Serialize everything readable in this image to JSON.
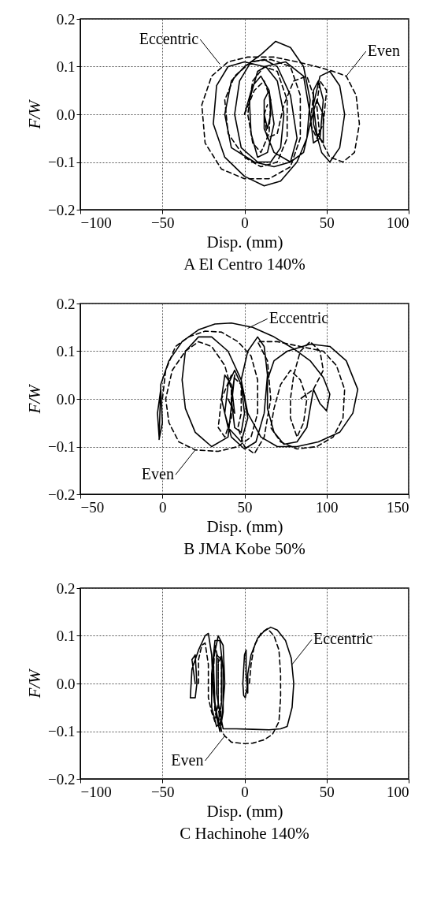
{
  "chart_data": [
    {
      "type": "line",
      "title": "A El Centro 140%",
      "xlabel": "Disp. (mm)",
      "ylabel": "F/W",
      "xlim": [
        -100,
        100
      ],
      "ylim": [
        -0.2,
        0.2
      ],
      "xticks": [
        -100,
        -50,
        0,
        50,
        100
      ],
      "yticks": [
        {
          "value": -0.2,
          "label": "−0.2"
        },
        {
          "value": -0.1,
          "label": "−0.1"
        },
        {
          "value": 0,
          "label": "0.0"
        },
        {
          "value": 0.1,
          "label": "0.1"
        },
        {
          "value": 0.2,
          "label": "0.2"
        }
      ],
      "grid": true,
      "annotations": [
        {
          "text": "Eccentric",
          "x": -15,
          "y": 0.105
        },
        {
          "text": "Even",
          "x": 62,
          "y": 0.08
        }
      ],
      "series": [
        {
          "color": "#000000",
          "line_style": "solid",
          "x": [
            0,
            5,
            10,
            15,
            18,
            14,
            8,
            4,
            3,
            8,
            13,
            20,
            24,
            22,
            16,
            8,
            -2,
            -6,
            -3,
            4,
            12,
            20,
            28,
            32,
            28,
            18,
            6,
            -8,
            -12,
            -8,
            0,
            10,
            19,
            28,
            36,
            40,
            38,
            32,
            22,
            12,
            0,
            -12,
            -19,
            -17,
            -10,
            0,
            12,
            25,
            36,
            40,
            42,
            46,
            48,
            45,
            42,
            42,
            47,
            52,
            58,
            61,
            58,
            52,
            46,
            42,
            44,
            48,
            48,
            44,
            40,
            36,
            28,
            18,
            12,
            12,
            15,
            16,
            14,
            12
          ],
          "values": [
            0,
            0.06,
            0.08,
            0.05,
            -0.02,
            -0.08,
            -0.09,
            -0.04,
            0.03,
            0.09,
            0.1,
            0.07,
            0,
            -0.07,
            -0.1,
            -0.1,
            -0.07,
            0,
            0.07,
            0.11,
            0.115,
            0.1,
            0.04,
            -0.05,
            -0.1,
            -0.11,
            -0.1,
            -0.07,
            0,
            0.07,
            0.1,
            0.125,
            0.153,
            0.14,
            0.1,
            0.03,
            -0.05,
            -0.1,
            -0.14,
            -0.15,
            -0.13,
            -0.09,
            -0.02,
            0.06,
            0.1,
            0.11,
            0.1,
            0.11,
            0.08,
            0,
            -0.06,
            -0.05,
            0.03,
            0.07,
            0.05,
            -0.02,
            -0.08,
            -0.1,
            -0.07,
            0,
            0.06,
            0.09,
            0.08,
            0.02,
            -0.04,
            -0.06,
            0,
            0.03,
            -0.02,
            -0.08,
            -0.1,
            -0.08,
            -0.03,
            0.03,
            0.05,
            0,
            -0.03,
            0
          ]
        },
        {
          "color": "#000000",
          "line_style": "dashed",
          "x": [
            0,
            6,
            12,
            16,
            15,
            10,
            5,
            2,
            5,
            12,
            20,
            26,
            26,
            20,
            10,
            0,
            -10,
            -12,
            -6,
            4,
            16,
            28,
            34,
            34,
            28,
            15,
            0,
            -14,
            -24,
            -26,
            -20,
            -10,
            2,
            18,
            32,
            44,
            54,
            62,
            68,
            70,
            67,
            60,
            52,
            46,
            44,
            46,
            50,
            48,
            44,
            40,
            42,
            38,
            30,
            24,
            20,
            14,
            12,
            14
          ],
          "values": [
            0,
            0.05,
            0.07,
            0.03,
            -0.04,
            -0.08,
            -0.06,
            0,
            0.07,
            0.1,
            0.09,
            0.03,
            -0.05,
            -0.1,
            -0.11,
            -0.09,
            -0.04,
            0.03,
            0.08,
            0.11,
            0.115,
            0.1,
            0.04,
            -0.05,
            -0.11,
            -0.135,
            -0.135,
            -0.115,
            -0.06,
            0.02,
            0.08,
            0.11,
            0.12,
            0.12,
            0.11,
            0.1,
            0.09,
            0.08,
            0.04,
            -0.02,
            -0.08,
            -0.1,
            -0.09,
            -0.05,
            0.02,
            0.07,
            0.05,
            -0.02,
            -0.05,
            -0.02,
            0.04,
            0.08,
            0.07,
            0.02,
            -0.04,
            -0.05,
            0,
            0.02
          ]
        }
      ]
    },
    {
      "type": "line",
      "title": "B JMA Kobe 50%",
      "xlabel": "Disp. (mm)",
      "ylabel": "F/W",
      "xlim": [
        -50,
        150
      ],
      "ylim": [
        -0.2,
        0.2
      ],
      "xticks": [
        -50,
        0,
        50,
        100,
        150
      ],
      "yticks": [
        {
          "value": -0.2,
          "label": "−0.2"
        },
        {
          "value": -0.1,
          "label": "−0.1"
        },
        {
          "value": 0,
          "label": "0.0"
        },
        {
          "value": 0.1,
          "label": "0.1"
        },
        {
          "value": 0.2,
          "label": "0.2"
        }
      ],
      "grid": true,
      "annotations": [
        {
          "text": "Eccentric",
          "x": 52,
          "y": 0.148
        },
        {
          "text": "Even",
          "x": 20,
          "y": -0.107
        }
      ],
      "series": [
        {
          "color": "#000000",
          "line_style": "solid",
          "x": [
            -2,
            -3,
            -1,
            0,
            -2,
            -1,
            4,
            12,
            22,
            32,
            42,
            55,
            68,
            80,
            90,
            98,
            102,
            100,
            96,
            92,
            90,
            88,
            82,
            74,
            68,
            64,
            64,
            68,
            76,
            90,
            102,
            112,
            119,
            116,
            108,
            95,
            82,
            70,
            60,
            52,
            48,
            52,
            58,
            62,
            64,
            62,
            57,
            50,
            42,
            38,
            40,
            44,
            48,
            50,
            48,
            44,
            42,
            44,
            40,
            30,
            20,
            14,
            12,
            14,
            22,
            30,
            40,
            48,
            52,
            48,
            40,
            36,
            38,
            42,
            44,
            40
          ],
          "values": [
            -0.08,
            -0.03,
            0.02,
            -0.05,
            -0.085,
            0.03,
            0.08,
            0.12,
            0.145,
            0.157,
            0.159,
            0.15,
            0.13,
            0.105,
            0.08,
            0.045,
            0.01,
            -0.025,
            -0.01,
            0.02,
            -0.02,
            -0.06,
            -0.09,
            -0.095,
            -0.07,
            -0.02,
            0.04,
            0.08,
            0.1,
            0.115,
            0.11,
            0.08,
            0.02,
            -0.03,
            -0.07,
            -0.09,
            -0.1,
            -0.1,
            -0.08,
            -0.03,
            0.04,
            0.1,
            0.13,
            0.11,
            0.05,
            -0.03,
            -0.09,
            -0.105,
            -0.08,
            -0.03,
            0.03,
            0.06,
            0.03,
            -0.03,
            -0.07,
            -0.06,
            0,
            0.05,
            -0.08,
            -0.1,
            -0.07,
            -0.02,
            0.04,
            0.1,
            0.13,
            0.13,
            0.1,
            0.04,
            -0.04,
            -0.09,
            -0.06,
            0,
            0.05,
            0.03,
            -0.03,
            0
          ]
        },
        {
          "color": "#000000",
          "line_style": "dashed",
          "x": [
            0,
            2,
            8,
            16,
            26,
            36,
            46,
            54,
            58,
            58,
            54,
            46,
            34,
            20,
            10,
            4,
            2,
            6,
            14,
            22,
            30,
            38,
            42,
            42,
            38,
            34,
            36,
            42,
            48,
            48,
            46,
            50,
            56,
            62,
            66,
            64,
            58,
            70,
            84,
            98,
            106,
            111,
            110,
            104,
            94,
            82,
            72,
            66,
            68,
            72,
            78,
            84,
            88,
            86,
            82,
            78,
            78,
            80,
            84,
            90,
            96,
            98,
            92,
            84
          ],
          "values": [
            0,
            0.06,
            0.11,
            0.13,
            0.142,
            0.14,
            0.12,
            0.09,
            0.04,
            -0.03,
            -0.08,
            -0.1,
            -0.11,
            -0.107,
            -0.09,
            -0.05,
            0,
            0.06,
            0.1,
            0.12,
            0.11,
            0.07,
            0.02,
            -0.04,
            -0.08,
            -0.06,
            0,
            0.05,
            0.03,
            -0.03,
            -0.06,
            -0.1,
            -0.115,
            -0.08,
            0,
            0.08,
            0.12,
            0.12,
            0.11,
            0.1,
            0.07,
            0.02,
            -0.04,
            -0.08,
            -0.1,
            -0.105,
            -0.09,
            -0.06,
            -0.02,
            0.03,
            0.06,
            0.04,
            0,
            -0.05,
            -0.08,
            -0.04,
            0,
            0.05,
            0.1,
            0.12,
            0.1,
            0.06,
            0.02,
            0
          ]
        }
      ]
    },
    {
      "type": "line",
      "title": "C Hachinohe 140%",
      "xlabel": "Disp. (mm)",
      "ylabel": "F/W",
      "xlim": [
        -100,
        100
      ],
      "ylim": [
        -0.2,
        0.2
      ],
      "xticks": [
        -100,
        -50,
        0,
        50,
        100
      ],
      "yticks": [
        {
          "value": -0.2,
          "label": "−0.2"
        },
        {
          "value": -0.1,
          "label": "−0.1"
        },
        {
          "value": 0,
          "label": "0.0"
        },
        {
          "value": 0.1,
          "label": "0.1"
        },
        {
          "value": 0.2,
          "label": "0.2"
        }
      ],
      "grid": true,
      "annotations": [
        {
          "text": "Eccentric",
          "x": 29,
          "y": 0.04
        },
        {
          "text": "Even",
          "x": -12,
          "y": -0.11
        }
      ],
      "series": [
        {
          "color": "#000000",
          "line_style": "solid",
          "x": [
            -30,
            -32,
            -30,
            -29,
            -30,
            -33,
            -32,
            -28,
            -24,
            -22,
            -20,
            -19,
            -17,
            -15,
            -13,
            -13,
            -15,
            -18,
            -20,
            -20,
            -17,
            -14,
            -12,
            -13,
            -16,
            -19,
            -18,
            -16,
            -14,
            -14,
            -17,
            -17,
            -15,
            -13,
            -5,
            5,
            15,
            22,
            26,
            29,
            30,
            28.5,
            25,
            20,
            16,
            12,
            8,
            4,
            2,
            2,
            1,
            1,
            0,
            -1,
            -0.5,
            0.5,
            2
          ],
          "values": [
            0,
            0.05,
            0.06,
            0,
            -0.03,
            -0.03,
            0.03,
            0.07,
            0.1,
            0.105,
            0.06,
            -0.02,
            -0.07,
            -0.1,
            -0.06,
            0.03,
            0.09,
            0.09,
            0.02,
            -0.05,
            -0.09,
            -0.08,
            0,
            0.08,
            0.1,
            0.05,
            -0.04,
            -0.08,
            -0.04,
            0.05,
            0.06,
            -0.02,
            -0.06,
            -0.095,
            -0.095,
            -0.096,
            -0.097,
            -0.095,
            -0.09,
            -0.05,
            0,
            0.053,
            0.09,
            0.112,
            0.118,
            0.11,
            0.095,
            0.06,
            0.02,
            -0.02,
            0.02,
            0.07,
            0.06,
            0,
            -0.025,
            -0.03,
            0
          ]
        },
        {
          "color": "#000000",
          "line_style": "dashed",
          "x": [
            -28,
            -28,
            -26,
            -24,
            -22,
            -22,
            -20,
            -18,
            -16,
            -16,
            -18,
            -19,
            -18,
            -15,
            -14,
            -14,
            -16,
            -16,
            -14,
            -12,
            -8,
            0,
            5,
            12,
            17,
            21,
            22,
            22,
            21,
            18,
            14,
            10,
            6,
            4,
            3
          ],
          "values": [
            0,
            0.05,
            0.08,
            0.085,
            0.04,
            -0.03,
            -0.06,
            -0.08,
            -0.04,
            0.05,
            0.08,
            0.02,
            -0.06,
            -0.09,
            -0.03,
            0.06,
            0.04,
            -0.05,
            -0.1,
            -0.11,
            -0.123,
            -0.126,
            -0.125,
            -0.118,
            -0.107,
            -0.08,
            -0.03,
            0.02,
            0.07,
            0.1,
            0.115,
            0.105,
            0.08,
            0.04,
            0
          ]
        }
      ]
    }
  ]
}
